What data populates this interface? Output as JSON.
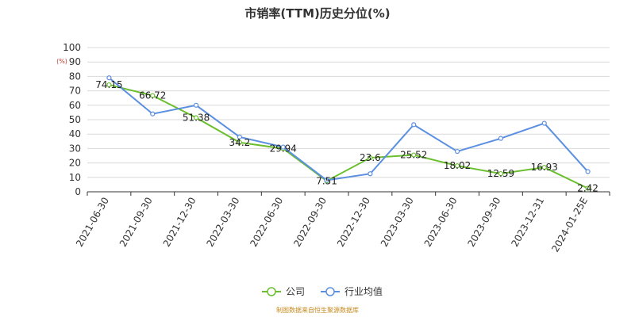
{
  "chart_data": {
    "type": "line",
    "title": "市销率(TTM)历史分位(%)",
    "ylabel": "(%)",
    "ylim": [
      0,
      100
    ],
    "yticks": [
      0,
      10,
      20,
      30,
      40,
      50,
      60,
      70,
      80,
      90,
      100
    ],
    "categories": [
      "2021-06-30",
      "2021-09-30",
      "2021-12-30",
      "2022-03-30",
      "2022-06-30",
      "2022-09-30",
      "2022-12-30",
      "2023-03-30",
      "2023-06-30",
      "2023-09-30",
      "2023-12-31",
      "2024-01-25E"
    ],
    "series": [
      {
        "name": "公司",
        "color": "#6bbf2e",
        "values": [
          74.15,
          66.72,
          51.38,
          34.2,
          29.94,
          7.51,
          23.6,
          25.52,
          18.02,
          12.59,
          16.93,
          2.42
        ],
        "labels": [
          "74.15",
          "66.72",
          "51.38",
          "34.2",
          "29.94",
          "7.51",
          "23.6",
          "25.52",
          "18.02",
          "12.59",
          "16.93",
          "2.42"
        ]
      },
      {
        "name": "行业均值",
        "color": "#5b8fe0",
        "values": [
          79,
          54,
          60,
          38,
          31,
          8,
          12.5,
          46.5,
          28,
          37,
          47.5,
          14
        ]
      }
    ],
    "grid": true,
    "legend_position": "bottom"
  },
  "source_note": "制图数据来自恒生聚源数据库"
}
